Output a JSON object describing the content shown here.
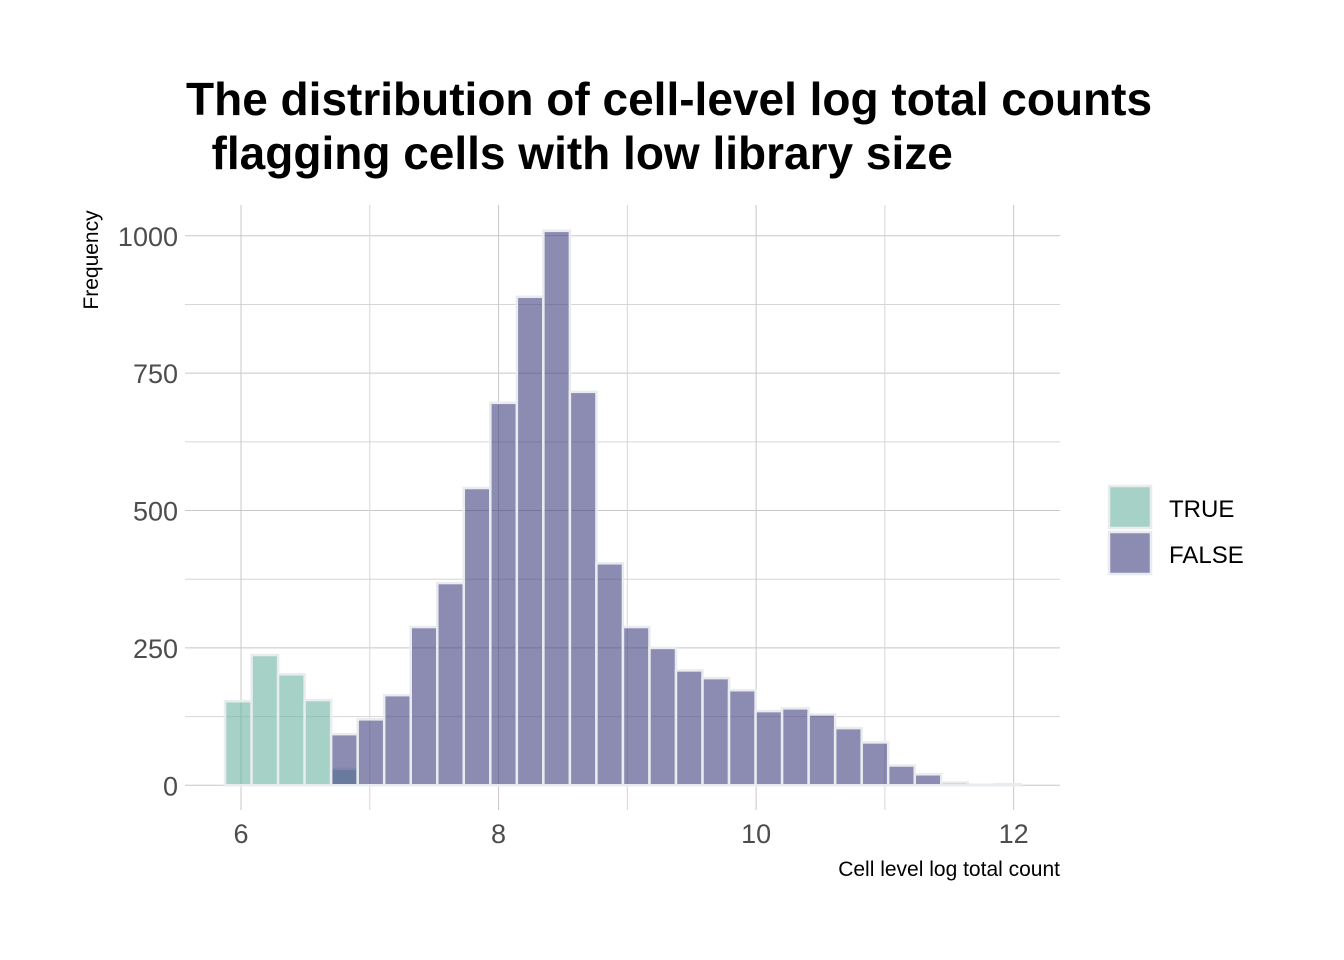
{
  "chart_data": {
    "type": "bar",
    "title": "The distribution of cell-level log total counts\n  flagging cells with low library size",
    "xlabel": "Cell level log total count",
    "ylabel": "Frequency",
    "xlim": [
      5.565,
      12.36
    ],
    "ylim": [
      -45,
      1056
    ],
    "x_ticks": [
      6,
      8,
      10,
      12
    ],
    "y_ticks": [
      0,
      250,
      500,
      750,
      1000
    ],
    "grid": true,
    "legend_position": "right",
    "bin_start": 5.876,
    "bin_width": 0.206,
    "series": [
      {
        "name": "TRUE",
        "color": "#69b3a2",
        "values": [
          153,
          237,
          202,
          155,
          30,
          0,
          0,
          0,
          0,
          0,
          0,
          0,
          0,
          0,
          0,
          0,
          0,
          0,
          0,
          0,
          0,
          0,
          0,
          0,
          0,
          0,
          0,
          0,
          0,
          0
        ]
      },
      {
        "name": "FALSE",
        "color": "#404080",
        "values": [
          0,
          0,
          0,
          0,
          93,
          120,
          164,
          288,
          368,
          541,
          696,
          889,
          1009,
          716,
          404,
          288,
          250,
          209,
          195,
          173,
          135,
          140,
          129,
          104,
          78,
          36,
          20,
          5,
          1,
          2
        ]
      }
    ]
  }
}
